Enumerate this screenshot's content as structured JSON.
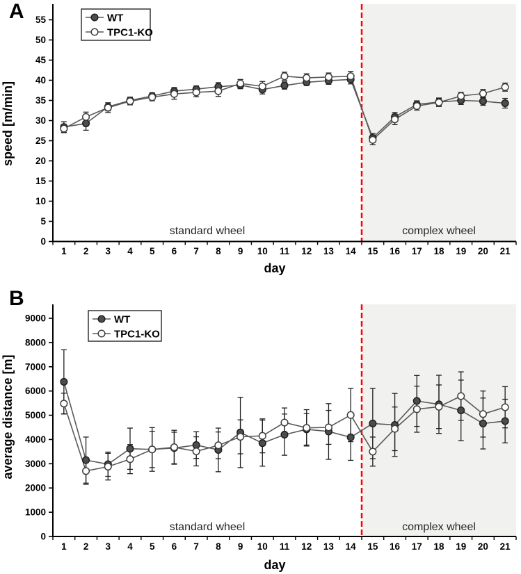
{
  "figure_title": "wheel running figure",
  "chart_data": [
    {
      "type": "line",
      "panel_label": "A",
      "xlabel": "day",
      "ylabel": "speed [m/min]",
      "ylim": [
        0,
        55
      ],
      "ytick_step": 5,
      "x": [
        1,
        2,
        3,
        4,
        5,
        6,
        7,
        8,
        9,
        10,
        11,
        12,
        13,
        14,
        15,
        16,
        17,
        18,
        19,
        20,
        21
      ],
      "divider_after_day": 14,
      "legend_position": "top-left",
      "grid": false,
      "regions": [
        {
          "label": "standard wheel",
          "from": 1,
          "to": 14,
          "shaded": false
        },
        {
          "label": "complex wheel",
          "from": 15,
          "to": 21,
          "shaded": true
        }
      ],
      "series": [
        {
          "name": "WT",
          "marker": "filled",
          "values": [
            28.4,
            29.3,
            33.4,
            35.0,
            36.1,
            37.3,
            37.8,
            38.4,
            38.8,
            37.7,
            38.7,
            39.5,
            39.9,
            40.2,
            25.7,
            30.9,
            34.0,
            34.6,
            35.0,
            34.8,
            34.3
          ],
          "err": [
            1.3,
            1.7,
            1.0,
            0.8,
            0.8,
            0.9,
            0.8,
            1.0,
            0.9,
            1.1,
            0.9,
            0.8,
            0.9,
            1.1,
            1.1,
            1.1,
            0.9,
            1.0,
            1.0,
            1.0,
            1.2
          ]
        },
        {
          "name": "TPC1-KO",
          "marker": "open",
          "values": [
            28.0,
            30.9,
            33.2,
            34.8,
            35.8,
            36.6,
            37.0,
            37.3,
            39.2,
            38.5,
            41.0,
            40.6,
            40.8,
            41.0,
            25.2,
            30.3,
            33.6,
            34.5,
            36.1,
            36.7,
            38.3
          ],
          "err": [
            1.0,
            1.2,
            1.2,
            0.9,
            0.9,
            1.3,
            1.1,
            1.3,
            1.0,
            1.2,
            1.0,
            1.0,
            1.0,
            1.2,
            1.2,
            1.3,
            1.0,
            1.0,
            0.9,
            1.0,
            1.0
          ]
        }
      ]
    },
    {
      "type": "line",
      "panel_label": "B",
      "xlabel": "day",
      "ylabel": "average distance [m]",
      "ylim": [
        0,
        9000
      ],
      "ytick_step": 1000,
      "x": [
        1,
        2,
        3,
        4,
        5,
        6,
        7,
        8,
        9,
        10,
        11,
        12,
        13,
        14,
        15,
        16,
        17,
        18,
        19,
        20,
        21
      ],
      "divider_after_day": 14,
      "legend_position": "top-left",
      "grid": false,
      "regions": [
        {
          "label": "standard wheel",
          "from": 1,
          "to": 14,
          "shaded": false
        },
        {
          "label": "complex wheel",
          "from": 15,
          "to": 21,
          "shaded": true
        }
      ],
      "series": [
        {
          "name": "WT",
          "marker": "filled",
          "values": [
            6380,
            3150,
            2980,
            3620,
            3590,
            3650,
            3770,
            3570,
            4290,
            3850,
            4200,
            4420,
            4330,
            4090,
            4660,
            4600,
            5590,
            5450,
            5200,
            4660,
            4760
          ],
          "err": [
            1320,
            950,
            500,
            850,
            900,
            650,
            550,
            900,
            1450,
            950,
            850,
            650,
            1150,
            950,
            1450,
            1300,
            1050,
            1200,
            1250,
            1050,
            900
          ]
        },
        {
          "name": "TPC1-KO",
          "marker": "open",
          "values": [
            5480,
            2700,
            2880,
            3190,
            3590,
            3680,
            3510,
            3760,
            4110,
            4150,
            4700,
            4480,
            4500,
            5010,
            3500,
            4440,
            5250,
            5350,
            5790,
            5050,
            5330
          ],
          "err": [
            430,
            550,
            550,
            600,
            750,
            700,
            600,
            550,
            700,
            700,
            600,
            750,
            700,
            1100,
            600,
            900,
            950,
            900,
            1000,
            950,
            850
          ]
        }
      ]
    }
  ],
  "colors": {
    "wt_marker_fill": "#4d4d4d",
    "marker_stroke": "#1f1f1f",
    "ko_marker_fill": "#ffffff",
    "line": "#595959",
    "error_bar": "#1f1f1f",
    "shaded_region_bg": "#f1f1ef",
    "divider_red": "#ff0000",
    "axis": "#000000",
    "tick_text": "#000000",
    "region_text": "#262626"
  }
}
